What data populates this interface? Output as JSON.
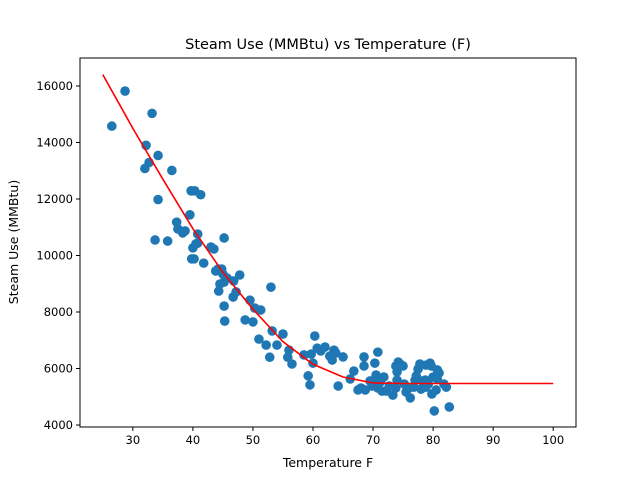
{
  "chart_data": {
    "type": "scatter",
    "title": "Steam Use (MMBtu) vs Temperature (F)",
    "xlabel": "Temperature F",
    "ylabel": "Steam Use (MMBtu)",
    "xlim": [
      21.2,
      103.8
    ],
    "ylim": [
      3930,
      16990
    ],
    "xticks": [
      30,
      40,
      50,
      60,
      70,
      80,
      90,
      100
    ],
    "yticks": [
      4000,
      6000,
      8000,
      10000,
      12000,
      14000,
      16000
    ],
    "grid": false,
    "colors": {
      "points": "#1f77b4",
      "fit": "#ff0000"
    },
    "points": [
      [
        26.5,
        14580
      ],
      [
        28.7,
        15820
      ],
      [
        32.2,
        13900
      ],
      [
        33.2,
        15030
      ],
      [
        32.0,
        13080
      ],
      [
        32.7,
        13290
      ],
      [
        34.2,
        13540
      ],
      [
        34.2,
        11980
      ],
      [
        36.5,
        13010
      ],
      [
        33.7,
        10550
      ],
      [
        35.8,
        10510
      ],
      [
        37.3,
        11180
      ],
      [
        37.5,
        10940
      ],
      [
        38.7,
        10870
      ],
      [
        38.3,
        10800
      ],
      [
        39.7,
        12290
      ],
      [
        40.3,
        12290
      ],
      [
        41.3,
        12150
      ],
      [
        39.5,
        11440
      ],
      [
        39.8,
        9880
      ],
      [
        40.2,
        9880
      ],
      [
        40.0,
        10270
      ],
      [
        40.5,
        10410
      ],
      [
        40.8,
        10760
      ],
      [
        40.8,
        10440
      ],
      [
        41.8,
        9730
      ],
      [
        43.0,
        10300
      ],
      [
        43.5,
        10230
      ],
      [
        43.8,
        9450
      ],
      [
        44.2,
        9520
      ],
      [
        44.3,
        8740
      ],
      [
        44.5,
        8990
      ],
      [
        44.8,
        9520
      ],
      [
        45.0,
        9340
      ],
      [
        45.2,
        9060
      ],
      [
        45.2,
        10620
      ],
      [
        45.2,
        8210
      ],
      [
        45.3,
        7680
      ],
      [
        45.7,
        9200
      ],
      [
        46.7,
        8530
      ],
      [
        46.8,
        9100
      ],
      [
        47.2,
        8710
      ],
      [
        47.8,
        9310
      ],
      [
        48.7,
        7720
      ],
      [
        49.5,
        8420
      ],
      [
        50.0,
        7650
      ],
      [
        50.3,
        8140
      ],
      [
        51.0,
        7040
      ],
      [
        51.3,
        8070
      ],
      [
        52.2,
        6830
      ],
      [
        52.8,
        6400
      ],
      [
        53.0,
        8880
      ],
      [
        53.2,
        7330
      ],
      [
        54.0,
        6830
      ],
      [
        55.0,
        7220
      ],
      [
        55.8,
        6400
      ],
      [
        56.0,
        6650
      ],
      [
        56.5,
        6160
      ],
      [
        58.5,
        6480
      ],
      [
        59.2,
        5740
      ],
      [
        59.5,
        5420
      ],
      [
        59.7,
        6510
      ],
      [
        60.0,
        6190
      ],
      [
        60.3,
        7150
      ],
      [
        60.7,
        6720
      ],
      [
        61.3,
        6620
      ],
      [
        62.0,
        6760
      ],
      [
        62.8,
        6440
      ],
      [
        63.2,
        6300
      ],
      [
        63.5,
        6650
      ],
      [
        63.8,
        6550
      ],
      [
        64.2,
        5380
      ],
      [
        65.0,
        6410
      ],
      [
        66.2,
        5630
      ],
      [
        66.8,
        5910
      ],
      [
        67.5,
        5240
      ],
      [
        68.0,
        5310
      ],
      [
        68.5,
        6090
      ],
      [
        68.5,
        6410
      ],
      [
        70.7,
        5560
      ],
      [
        71.5,
        5200
      ],
      [
        68.7,
        5240
      ],
      [
        69.8,
        5380
      ],
      [
        69.5,
        5560
      ],
      [
        70.8,
        5310
      ],
      [
        69.8,
        5520
      ],
      [
        70.5,
        5770
      ],
      [
        70.8,
        6580
      ],
      [
        70.3,
        6190
      ],
      [
        71.8,
        5700
      ],
      [
        71.2,
        5520
      ],
      [
        72.2,
        5200
      ],
      [
        72.7,
        5380
      ],
      [
        73.8,
        5310
      ],
      [
        73.3,
        5060
      ],
      [
        74.0,
        5880
      ],
      [
        73.8,
        6090
      ],
      [
        74.2,
        6230
      ],
      [
        74.5,
        6160
      ],
      [
        74.0,
        5590
      ],
      [
        75.0,
        6090
      ],
      [
        75.2,
        5450
      ],
      [
        75.5,
        5170
      ],
      [
        76.2,
        4960
      ],
      [
        76.0,
        5310
      ],
      [
        77.0,
        5590
      ],
      [
        77.2,
        5740
      ],
      [
        76.8,
        5340
      ],
      [
        77.5,
        5980
      ],
      [
        77.8,
        6160
      ],
      [
        78.2,
        5560
      ],
      [
        78.0,
        5270
      ],
      [
        78.7,
        5590
      ],
      [
        78.8,
        5340
      ],
      [
        79.2,
        5450
      ],
      [
        78.8,
        6120
      ],
      [
        79.5,
        6190
      ],
      [
        79.7,
        6090
      ],
      [
        80.0,
        5700
      ],
      [
        79.8,
        5100
      ],
      [
        80.2,
        4500
      ],
      [
        80.5,
        5240
      ],
      [
        80.7,
        5630
      ],
      [
        81.0,
        5840
      ],
      [
        80.7,
        5950
      ],
      [
        81.8,
        5450
      ],
      [
        82.2,
        5340
      ],
      [
        82.7,
        4640
      ]
    ],
    "fit_line": [
      [
        25,
        16400
      ],
      [
        30,
        14500
      ],
      [
        35,
        12700
      ],
      [
        40,
        10950
      ],
      [
        45,
        9400
      ],
      [
        50,
        8100
      ],
      [
        55,
        6950
      ],
      [
        60,
        6150
      ],
      [
        65,
        5700
      ],
      [
        70,
        5490
      ],
      [
        75,
        5470
      ],
      [
        100,
        5470
      ]
    ]
  }
}
